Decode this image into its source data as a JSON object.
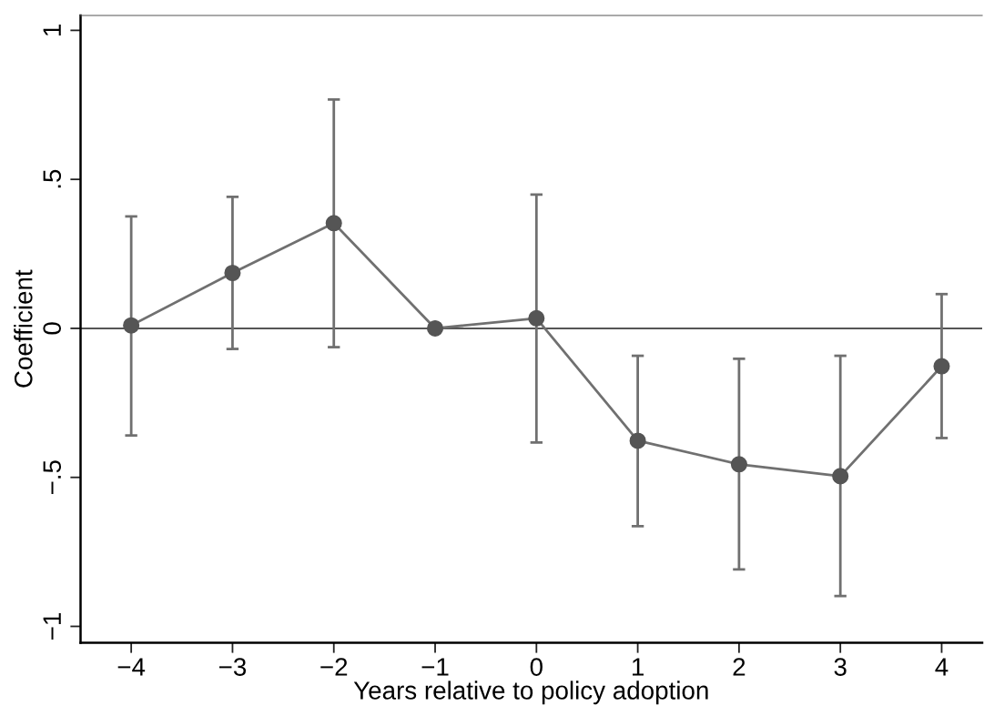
{
  "chart_data": {
    "type": "line",
    "xlabel": "Years relative to policy adoption",
    "ylabel": "Coefficient",
    "x": [
      -4,
      -3,
      -2,
      -1,
      0,
      1,
      2,
      3,
      4
    ],
    "series": [
      {
        "color": "#707070",
        "values": [
          0.01,
          0.186,
          0.353,
          0,
          0.034,
          -0.377,
          -0.456,
          -0.496,
          -0.127
        ],
        "errors": [
          [
            -0.359,
            0.376
          ],
          [
            -0.069,
            0.441
          ],
          [
            -0.063,
            0.768
          ],
          null,
          [
            -0.383,
            0.449
          ],
          [
            -0.664,
            -0.092
          ],
          [
            -0.809,
            -0.102
          ],
          [
            -0.898,
            -0.092
          ],
          [
            -0.368,
            0.115
          ]
        ]
      }
    ],
    "xlim": [
      -4.5,
      4.4
    ],
    "ylim": [
      -1.055,
      1.05
    ],
    "xticks": [
      {
        "value": -4,
        "label": "−4"
      },
      {
        "value": -3,
        "label": "−3"
      },
      {
        "value": -2,
        "label": "−2"
      },
      {
        "value": -1,
        "label": "−1"
      },
      0,
      1,
      2,
      3,
      4
    ],
    "yticks": [
      {
        "value": -1,
        "label": "−1"
      },
      {
        "value": -0.5,
        "label": "−.5"
      },
      0,
      {
        "value": 0.5,
        "label": ".5"
      },
      1
    ],
    "ref_lines": [
      {
        "axis": "y",
        "value": 0,
        "color": "#555555"
      }
    ],
    "marker": "circle",
    "line_style": "solid",
    "grid": false,
    "legend": false
  }
}
